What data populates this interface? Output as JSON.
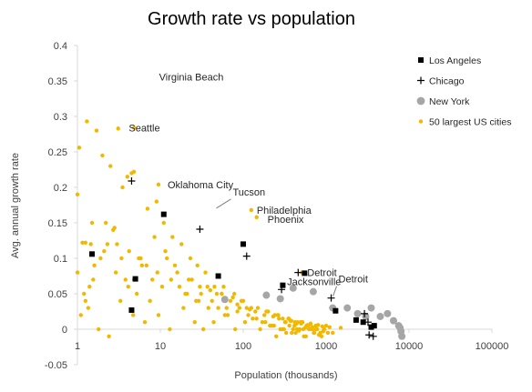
{
  "chart_data": {
    "type": "scatter",
    "title": "Growth rate vs population",
    "xlabel": "Population (thousands)",
    "ylabel": "Avg. annual growth rate",
    "x_scale": "log",
    "xlim": [
      1,
      100000
    ],
    "ylim": [
      -0.05,
      0.4
    ],
    "x_ticks": [
      "1",
      "10",
      "100",
      "1000",
      "10000",
      "100000"
    ],
    "y_ticks": [
      "-0.05",
      "0",
      "0.05",
      "0.1",
      "0.15",
      "0.2",
      "0.25",
      "0.3",
      "0.35",
      "0.4"
    ],
    "grid": false,
    "legend_position": "right",
    "colors": {
      "la": "#000000",
      "chicago": "#000000",
      "ny": "#a6a6a6",
      "cities": "#f2b800",
      "axis": "#d9d9d9",
      "leader": "#7f7f7f"
    },
    "series": [
      {
        "name": "Los Angeles",
        "marker": "square",
        "x": [
          1.5,
          4.5,
          5.0,
          11,
          50,
          100,
          300,
          550,
          1300,
          2300,
          2800,
          3500,
          3800
        ],
        "y": [
          0.106,
          0.027,
          0.071,
          0.162,
          0.075,
          0.12,
          0.062,
          0.079,
          0.026,
          0.013,
          0.01,
          0.003,
          0.005
        ]
      },
      {
        "name": "Chicago",
        "marker": "plus",
        "x": [
          4.5,
          30,
          110,
          290,
          460,
          1150,
          2900,
          3200,
          3300,
          3700
        ],
        "y": [
          0.209,
          0.141,
          0.103,
          0.056,
          0.08,
          0.044,
          0.022,
          0.01,
          -0.008,
          -0.01
        ]
      },
      {
        "name": "New York",
        "marker": "circle",
        "x": [
          60,
          190,
          280,
          400,
          700,
          1200,
          1800,
          2400,
          3000,
          3500,
          4500,
          5500,
          6500,
          7500,
          7800,
          8000,
          8200
        ],
        "y": [
          0.042,
          0.048,
          0.043,
          0.058,
          0.053,
          0.03,
          0.03,
          0.022,
          0.018,
          0.03,
          0.018,
          0.022,
          0.012,
          0.005,
          0.002,
          -0.003,
          -0.01
        ]
      },
      {
        "name": "50 largest US cities",
        "marker": "dot",
        "x": [
          1.0,
          1.05,
          1.15,
          1.3,
          1.45,
          1.7,
          2.0,
          2.5,
          3.1,
          3.5,
          4.0,
          4.5,
          5.5,
          7.0,
          9.0,
          11,
          14,
          18,
          23,
          28,
          35,
          45,
          55,
          70,
          85,
          110,
          120,
          140,
          180,
          230,
          300,
          380,
          450,
          500,
          600,
          750,
          900,
          1100,
          1500,
          1.2,
          1.6,
          2.2,
          3.0,
          4.2,
          6.0,
          8.5,
          12,
          16,
          22,
          30,
          40,
          55,
          75,
          100,
          150,
          200,
          260,
          350,
          420,
          520,
          650,
          800,
          1000,
          1.1,
          1.4,
          1.9,
          2.7,
          3.8,
          5.2,
          7.5,
          10.5,
          15,
          20,
          27,
          38,
          50,
          65,
          90,
          130,
          170,
          220,
          280,
          330,
          400,
          470,
          560,
          700,
          850,
          1.35,
          1.8,
          2.4,
          3.3,
          4.7,
          6.5,
          9.5,
          13,
          19,
          26,
          33,
          44,
          60,
          80,
          105,
          160,
          210,
          250,
          310,
          360,
          430,
          480,
          540,
          620,
          720,
          1.25,
          1.55,
          2.1,
          2.9,
          4.1,
          5.8,
          8.0,
          11.5,
          17,
          24,
          31,
          42,
          58,
          78,
          95,
          125,
          190,
          240,
          270,
          320,
          370,
          440,
          510,
          580,
          680,
          780,
          920,
          1200,
          1.0,
          1.5,
          2.3,
          3.4,
          4.8,
          6.8,
          9.2,
          13.5,
          21,
          29,
          37,
          48,
          63,
          85,
          115,
          145,
          185,
          235,
          265,
          295,
          325,
          355,
          385,
          415,
          445,
          490,
          530,
          570,
          610,
          660,
          710,
          760,
          820,
          880,
          950,
          1050,
          9.5,
          4.8,
          4.8,
          1.25,
          2.8,
          125,
          145,
          510
        ],
        "y": [
          0.19,
          0.256,
          0.122,
          0.293,
          0.12,
          0.28,
          0.245,
          0.23,
          0.283,
          0.2,
          0.215,
          0.22,
          0.1,
          0.17,
          0.18,
          0.15,
          0.13,
          0.12,
          0.1,
          0.09,
          0.08,
          0.06,
          0.05,
          0.04,
          0.035,
          0.03,
          0.028,
          0.025,
          0.02,
          0.018,
          0.015,
          0.012,
          0.01,
          0.008,
          0.006,
          0.005,
          0.004,
          0.003,
          0.002,
          0.05,
          0.09,
          0.15,
          0.12,
          0.11,
          0.09,
          0.13,
          0.1,
          0.08,
          0.07,
          0.06,
          0.055,
          0.05,
          0.045,
          0.04,
          0.03,
          0.025,
          0.02,
          0.015,
          0.01,
          0.01,
          0.008,
          0.006,
          0.005,
          0.02,
          0.06,
          0.1,
          0.14,
          0.07,
          0.05,
          0.04,
          0.06,
          0.09,
          0.05,
          0.04,
          0.03,
          0.03,
          0.02,
          0.03,
          0.015,
          0.01,
          0.005,
          0.0,
          -0.005,
          0.0,
          -0.002,
          0.002,
          0.0,
          -0.005,
          0.03,
          0.0,
          -0.01,
          0.04,
          0.02,
          0.01,
          0.02,
          0.0,
          0.03,
          0.01,
          0.0,
          0.01,
          0.02,
          0.0,
          0.01,
          0.0,
          0.005,
          -0.01,
          0.0,
          0.005,
          -0.005,
          0.0,
          -0.01,
          0.0,
          -0.005,
          0.04,
          0.07,
          0.11,
          0.08,
          0.06,
          0.1,
          0.07,
          0.11,
          0.06,
          0.07,
          0.05,
          0.04,
          0.06,
          0.05,
          0.04,
          0.03,
          0.025,
          0.02,
          0.015,
          0.01,
          0.012,
          0.008,
          0.01,
          0.005,
          0.003,
          0.0,
          -0.003,
          -0.005,
          0.08,
          0.15,
          0.12,
          0.1,
          0.07,
          0.09,
          0.08,
          0.07,
          0.05,
          0.04,
          0.06,
          0.05,
          0.03,
          0.025,
          0.02,
          0.015,
          0.01,
          0.005,
          0.02,
          0.0,
          0.01,
          0.015,
          -0.005,
          0.005,
          0.0,
          0.01,
          0.0,
          -0.01,
          0.005,
          0.0,
          -0.005,
          0.0,
          -0.008,
          -0.01,
          0.0,
          -0.005,
          0.204,
          0.222,
          0.284,
          0.122,
          0.143,
          0.168,
          0.158,
          0.08
        ]
      }
    ],
    "annotations": [
      {
        "text": "Virginia Beach",
        "x": 7.5,
        "y": 0.356
      },
      {
        "text": "Seattle",
        "x": 3.4,
        "y": 0.284
      },
      {
        "text": "Oklahoma City",
        "x": 9.5,
        "y": 0.204
      },
      {
        "text": "Tucson",
        "x": 45,
        "y": 0.168
      },
      {
        "text": "Philadelphia",
        "x": 125,
        "y": 0.168
      },
      {
        "text": "Phoenix",
        "x": 145,
        "y": 0.158
      },
      {
        "text": "Jacksonville",
        "x": 290,
        "y": 0.056
      },
      {
        "text": "Detroit",
        "x": 460,
        "y": 0.08
      },
      {
        "text": "Detroit",
        "x": 1150,
        "y": 0.044
      }
    ]
  }
}
